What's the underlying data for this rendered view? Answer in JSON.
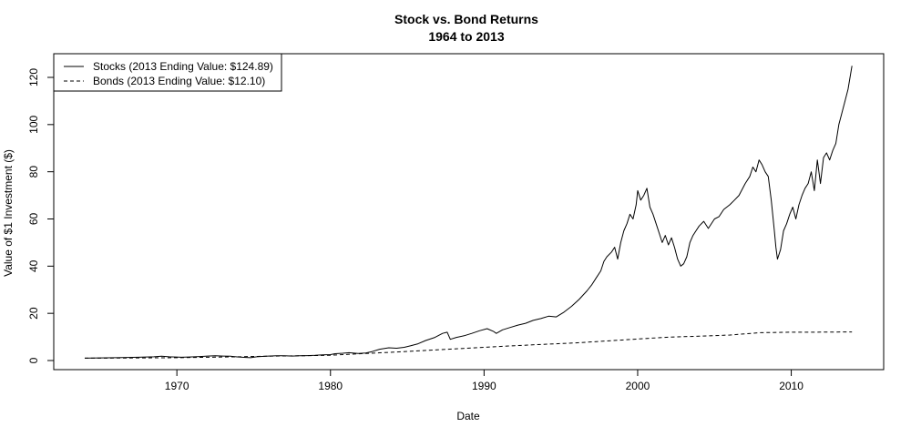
{
  "chart_data": {
    "type": "line",
    "title": "Stock vs. Bond Returns",
    "subtitle": "1964 to 2013",
    "xlabel": "Date",
    "ylabel": "Value of $1 Investment ($)",
    "xlim": [
      1964,
      2014
    ],
    "ylim": [
      0,
      125
    ],
    "x_ticks": [
      1970,
      1980,
      1990,
      2000,
      2010
    ],
    "y_ticks": [
      0,
      20,
      40,
      60,
      80,
      100,
      120
    ],
    "grid": false,
    "legend_position": "top-left",
    "series": [
      {
        "name": "Stocks (2013 Ending Value: $124.89)",
        "line_style": "solid",
        "color": "#000000",
        "x": [
          1964.0,
          1965.0,
          1966.0,
          1966.8,
          1967.5,
          1968.5,
          1969.0,
          1969.5,
          1970.3,
          1970.8,
          1971.5,
          1972.0,
          1972.5,
          1973.0,
          1973.5,
          1974.0,
          1974.5,
          1974.8,
          1975.2,
          1975.8,
          1976.5,
          1977.0,
          1977.5,
          1978.0,
          1978.5,
          1979.0,
          1979.5,
          1980.0,
          1980.3,
          1980.8,
          1981.2,
          1981.8,
          1982.3,
          1982.7,
          1983.2,
          1983.8,
          1984.3,
          1984.8,
          1985.2,
          1985.7,
          1986.2,
          1986.8,
          1987.3,
          1987.6,
          1987.8,
          1988.2,
          1988.7,
          1989.2,
          1989.7,
          1990.2,
          1990.6,
          1990.8,
          1991.2,
          1991.7,
          1992.2,
          1992.7,
          1993.2,
          1993.7,
          1994.2,
          1994.7,
          1995.2,
          1995.7,
          1996.2,
          1996.7,
          1997.0,
          1997.3,
          1997.6,
          1997.8,
          1998.0,
          1998.3,
          1998.5,
          1998.7,
          1998.9,
          1999.1,
          1999.3,
          1999.5,
          1999.7,
          1999.9,
          2000.0,
          2000.2,
          2000.4,
          2000.6,
          2000.8,
          2001.0,
          2001.2,
          2001.4,
          2001.6,
          2001.8,
          2002.0,
          2002.2,
          2002.4,
          2002.6,
          2002.8,
          2003.0,
          2003.2,
          2003.4,
          2003.6,
          2003.8,
          2004.0,
          2004.3,
          2004.6,
          2005.0,
          2005.3,
          2005.6,
          2006.0,
          2006.3,
          2006.6,
          2007.0,
          2007.3,
          2007.5,
          2007.7,
          2007.9,
          2008.1,
          2008.3,
          2008.5,
          2008.7,
          2008.9,
          2009.0,
          2009.1,
          2009.3,
          2009.5,
          2009.7,
          2009.9,
          2010.1,
          2010.3,
          2010.5,
          2010.7,
          2010.9,
          2011.1,
          2011.3,
          2011.5,
          2011.7,
          2011.9,
          2012.1,
          2012.3,
          2012.5,
          2012.7,
          2012.9,
          2013.1,
          2013.3,
          2013.5,
          2013.7,
          2013.95
        ],
        "values": [
          1.0,
          1.1,
          1.2,
          1.3,
          1.4,
          1.6,
          1.8,
          1.6,
          1.4,
          1.5,
          1.7,
          1.9,
          2.0,
          1.9,
          1.8,
          1.5,
          1.3,
          1.2,
          1.6,
          1.8,
          2.0,
          2.0,
          1.9,
          2.0,
          2.1,
          2.2,
          2.4,
          2.5,
          2.9,
          3.1,
          3.3,
          3.0,
          3.2,
          3.8,
          4.8,
          5.4,
          5.2,
          5.6,
          6.2,
          7.1,
          8.5,
          9.8,
          11.5,
          12.0,
          9.0,
          9.8,
          10.5,
          11.5,
          12.6,
          13.5,
          12.4,
          11.5,
          13.0,
          14.0,
          15.0,
          15.8,
          17.0,
          17.8,
          18.8,
          18.5,
          20.5,
          23.0,
          26.0,
          29.5,
          32.0,
          35.0,
          38.0,
          42.0,
          44.0,
          46.0,
          48.0,
          43.0,
          50.0,
          55.0,
          58.0,
          62.0,
          60.0,
          66.0,
          72.0,
          68.0,
          70.0,
          73.0,
          65.0,
          62.0,
          58.0,
          54.0,
          50.0,
          53.0,
          49.0,
          52.0,
          48.0,
          43.0,
          40.0,
          41.0,
          44.0,
          50.0,
          53.0,
          55.0,
          57.0,
          59.0,
          56.0,
          60.0,
          61.0,
          64.0,
          66.0,
          68.0,
          70.0,
          75.0,
          78.0,
          82.0,
          80.0,
          85.0,
          83.0,
          80.0,
          78.0,
          68.0,
          55.0,
          48.0,
          43.0,
          47.0,
          55.0,
          58.0,
          62.0,
          65.0,
          60.0,
          66.0,
          70.0,
          73.0,
          75.0,
          80.0,
          72.0,
          85.0,
          75.0,
          86.0,
          88.0,
          85.0,
          89.0,
          92.0,
          100.0,
          105.0,
          110.0,
          115.0,
          124.89
        ]
      },
      {
        "name": "Bonds (2013 Ending Value: $12.10)",
        "line_style": "dashed",
        "color": "#000000",
        "x": [
          1964,
          1966,
          1968,
          1970,
          1972,
          1974,
          1976,
          1978,
          1980,
          1982,
          1984,
          1986,
          1988,
          1990,
          1992,
          1994,
          1996,
          1998,
          2000,
          2002,
          2004,
          2006,
          2008,
          2010,
          2012,
          2013.95
        ],
        "values": [
          1.0,
          1.05,
          1.1,
          1.2,
          1.4,
          1.6,
          1.85,
          2.0,
          2.25,
          2.9,
          3.5,
          4.2,
          4.9,
          5.6,
          6.3,
          6.9,
          7.5,
          8.3,
          9.1,
          9.9,
          10.3,
          10.8,
          11.8,
          12.0,
          12.05,
          12.1
        ]
      }
    ]
  }
}
